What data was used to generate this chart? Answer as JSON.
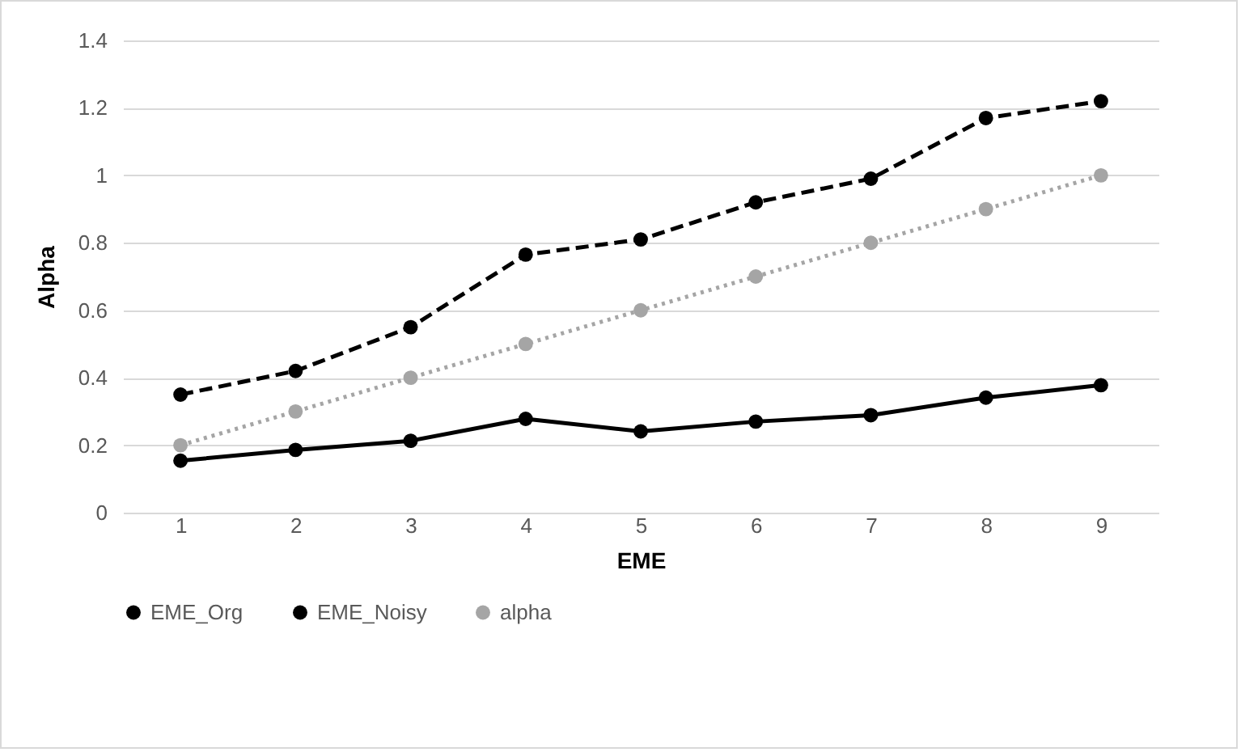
{
  "chart_data": {
    "type": "line",
    "categories": [
      "1",
      "2",
      "3",
      "4",
      "5",
      "6",
      "7",
      "8",
      "9"
    ],
    "xlabel": "EME",
    "ylabel": "Alpha",
    "ylim": [
      0,
      1.4
    ],
    "yticks": [
      0,
      0.2,
      0.4,
      0.6,
      0.8,
      1,
      1.2,
      1.4
    ],
    "grid": "y",
    "legend": "bottom",
    "marker": "circle",
    "series": [
      {
        "name": "EME_Org",
        "color": "#000000",
        "line_style": "dashed",
        "values": [
          0.35,
          0.42,
          0.55,
          0.765,
          0.81,
          0.92,
          0.99,
          1.17,
          1.22
        ]
      },
      {
        "name": "EME_Noisy",
        "color": "#000000",
        "line_style": "solid",
        "values": [
          0.154,
          0.186,
          0.213,
          0.278,
          0.241,
          0.27,
          0.289,
          0.341,
          0.378
        ]
      },
      {
        "name": "alpha",
        "color": "#a5a5a5",
        "line_style": "dotted",
        "values": [
          0.2,
          0.3,
          0.4,
          0.5,
          0.6,
          0.7,
          0.8,
          0.9,
          1.0
        ]
      }
    ]
  }
}
